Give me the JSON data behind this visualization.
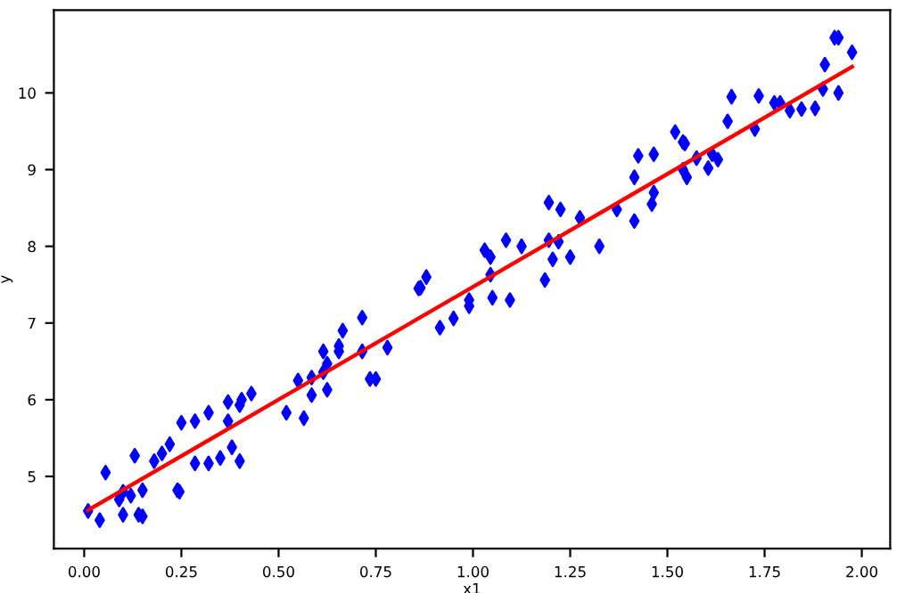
{
  "chart_data": {
    "type": "scatter",
    "xlabel": "x1",
    "ylabel": "y",
    "marker": "diamond",
    "grid": false,
    "xlim": [
      -0.078,
      2.073
    ],
    "ylim": [
      4.06,
      11.08
    ],
    "xticks": [
      {
        "value": 0,
        "label": "0.00"
      },
      {
        "value": 0.25,
        "label": "0.25"
      },
      {
        "value": 0.5,
        "label": "0.50"
      },
      {
        "value": 0.75,
        "label": "0.75"
      },
      {
        "value": 1,
        "label": "1.00"
      },
      {
        "value": 1.25,
        "label": "1.25"
      },
      {
        "value": 1.5,
        "label": "1.50"
      },
      {
        "value": 1.75,
        "label": "1.75"
      },
      {
        "value": 2,
        "label": "2.00"
      }
    ],
    "yticks": [
      5,
      6,
      7,
      8,
      9,
      10
    ],
    "series": [
      {
        "color": "#0000ff",
        "x": [
          0.01,
          0.04,
          0.055,
          0.09,
          0.1,
          0.1,
          0.12,
          0.13,
          0.14,
          0.15,
          0.15,
          0.18,
          0.2,
          0.22,
          0.24,
          0.245,
          0.25,
          0.285,
          0.285,
          0.32,
          0.32,
          0.35,
          0.37,
          0.37,
          0.38,
          0.4,
          0.405,
          0.4,
          0.43,
          0.52,
          0.55,
          0.565,
          0.585,
          0.585,
          0.615,
          0.615,
          0.625,
          0.625,
          0.655,
          0.655,
          0.665,
          0.715,
          0.715,
          0.735,
          0.75,
          0.78,
          0.86,
          0.865,
          0.88,
          0.915,
          0.95,
          0.99,
          0.99,
          1.03,
          1.045,
          1.045,
          1.05,
          1.085,
          1.095,
          1.125,
          1.185,
          1.195,
          1.195,
          1.205,
          1.22,
          1.225,
          1.25,
          1.275,
          1.325,
          1.37,
          1.415,
          1.415,
          1.425,
          1.465,
          1.46,
          1.465,
          1.52,
          1.54,
          1.545,
          1.54,
          1.55,
          1.575,
          1.605,
          1.615,
          1.63,
          1.655,
          1.665,
          1.725,
          1.735,
          1.775,
          1.79,
          1.815,
          1.845,
          1.88,
          1.905,
          1.9,
          1.93,
          1.94,
          1.94,
          1.975
        ],
        "values": [
          4.55,
          4.43,
          5.05,
          4.7,
          4.5,
          4.8,
          4.75,
          5.27,
          4.5,
          4.48,
          4.82,
          5.2,
          5.3,
          5.42,
          4.82,
          4.8,
          5.7,
          5.72,
          5.17,
          5.83,
          5.17,
          5.24,
          5.97,
          5.72,
          5.38,
          5.93,
          6.0,
          5.2,
          6.08,
          5.83,
          6.25,
          5.76,
          6.29,
          6.06,
          6.36,
          6.63,
          6.47,
          6.13,
          6.63,
          6.7,
          6.9,
          7.07,
          6.63,
          6.27,
          6.27,
          6.68,
          7.45,
          7.46,
          7.6,
          6.94,
          7.06,
          7.3,
          7.22,
          7.95,
          7.86,
          7.63,
          7.33,
          8.08,
          7.3,
          8.0,
          7.56,
          8.57,
          8.08,
          7.83,
          8.06,
          8.48,
          7.86,
          8.37,
          8.0,
          8.48,
          8.9,
          8.33,
          9.18,
          9.2,
          8.55,
          8.7,
          9.49,
          9.36,
          9.34,
          9.0,
          8.9,
          9.15,
          9.02,
          9.2,
          9.13,
          9.63,
          9.95,
          9.53,
          9.96,
          9.87,
          9.87,
          9.77,
          9.79,
          9.8,
          10.37,
          10.05,
          10.72,
          10.72,
          10.0,
          10.53
        ]
      },
      {
        "type": "line",
        "color": "#ff0000",
        "marker": "none",
        "x": [
          0.01,
          1.975
        ],
        "values": [
          4.56,
          10.34
        ]
      }
    ]
  }
}
